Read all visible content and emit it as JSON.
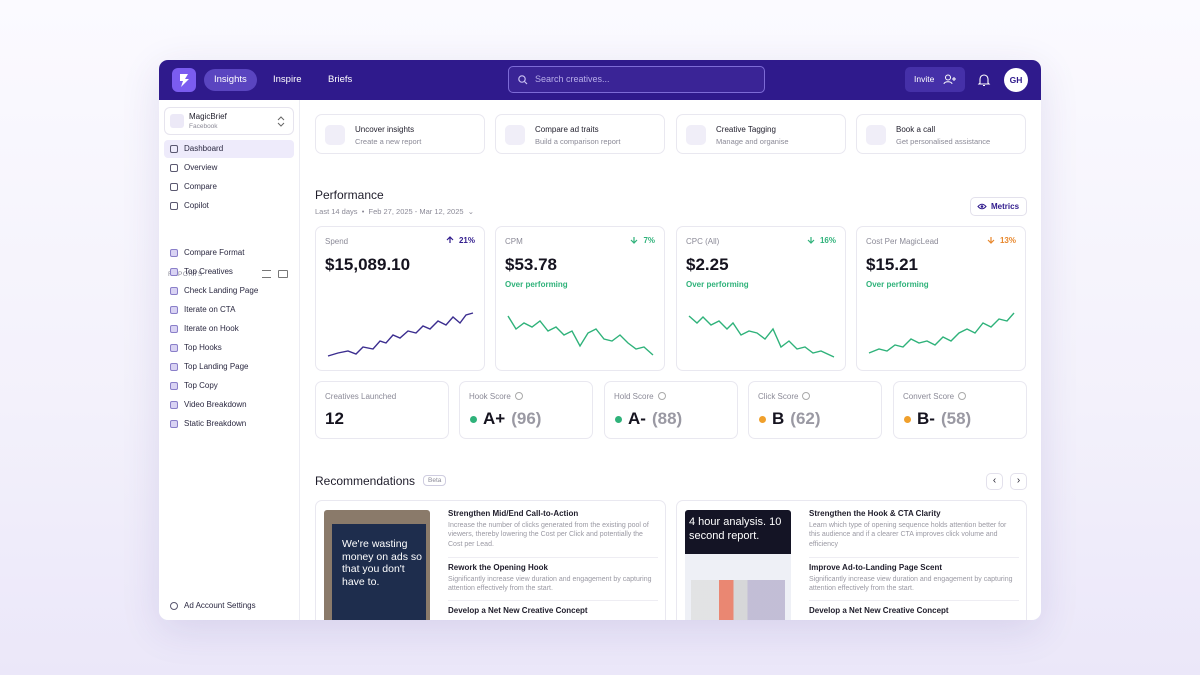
{
  "nav": {
    "items": [
      "Insights",
      "Inspire",
      "Briefs"
    ],
    "search_placeholder": "Search creatives...",
    "invite": "Invite",
    "avatar": "GH"
  },
  "sidebar": {
    "account": {
      "name": "MagicBrief",
      "platform": "Facebook"
    },
    "menu": [
      "Dashboard",
      "Overview",
      "Compare",
      "Copilot"
    ],
    "reports_heading": "REPORTS",
    "reports": [
      "Compare Format",
      "Top Creatives",
      "Check Landing Page",
      "Iterate on CTA",
      "Iterate on Hook",
      "Top Hooks",
      "Top Landing Page",
      "Top Copy",
      "Video Breakdown",
      "Static Breakdown"
    ],
    "footer": "Ad Account Settings"
  },
  "quick_actions": [
    {
      "title": "Uncover insights",
      "subtitle": "Create a new report"
    },
    {
      "title": "Compare ad traits",
      "subtitle": "Build a comparison report"
    },
    {
      "title": "Creative Tagging",
      "subtitle": "Manage and organise"
    },
    {
      "title": "Book a call",
      "subtitle": "Get personalised assistance"
    }
  ],
  "performance": {
    "title": "Performance",
    "period": "Last 14 days",
    "dates": "Feb 27, 2025 - Mar 12, 2025",
    "metrics_button": "Metrics",
    "cards": [
      {
        "label": "Spend",
        "change": "21%",
        "trend": "up",
        "color": "#2f1a8c",
        "value": "$15,089.10"
      },
      {
        "label": "CPM",
        "change": "7%",
        "trend": "down",
        "color": "#2fb27a",
        "value": "$53.78",
        "status": "Over performing"
      },
      {
        "label": "CPC (All)",
        "change": "16%",
        "trend": "down",
        "color": "#2fb27a",
        "value": "$2.25",
        "status": "Over performing"
      },
      {
        "label": "Cost Per MagicLead",
        "change": "13%",
        "trend": "down",
        "color": "#e8872b",
        "value": "$15.21",
        "status": "Over performing"
      }
    ],
    "scores": [
      {
        "label": "Creatives Launched",
        "value": "12"
      },
      {
        "label": "Hook Score",
        "grade": "A+",
        "score": "(96)",
        "color": "#2fb27a"
      },
      {
        "label": "Hold Score",
        "grade": "A-",
        "score": "(88)",
        "color": "#2fb27a"
      },
      {
        "label": "Click Score",
        "grade": "B",
        "score": "(62)",
        "color": "#f0a02c"
      },
      {
        "label": "Convert Score",
        "grade": "B-",
        "score": "(58)",
        "color": "#f0a02c"
      }
    ]
  },
  "recommendations": {
    "title": "Recommendations",
    "badge": "Beta",
    "cards": [
      {
        "image_text": "We're wasting money on ads so that you don't have to.",
        "items": [
          {
            "title": "Strengthen Mid/End Call-to-Action",
            "description": "Increase the number of clicks generated from the existing pool of viewers, thereby lowering the Cost per Click and potentially the Cost per Lead."
          },
          {
            "title": "Rework the Opening Hook",
            "description": "Significantly increase view duration and engagement by capturing attention effectively from the start."
          },
          {
            "title": "Develop a Net New Creative Concept"
          }
        ]
      },
      {
        "image_text": "4 hour analysis. 10 second report.",
        "items": [
          {
            "title": "Strengthen the Hook & CTA Clarity",
            "description": "Learn which type of opening sequence holds attention better for this audience and if a clearer CTA improves click volume and efficiency"
          },
          {
            "title": "Improve Ad-to-Landing Page Scent",
            "description": "Significantly increase view duration and engagement by capturing attention effectively from the start."
          },
          {
            "title": "Develop a Net New Creative Concept"
          }
        ]
      }
    ]
  }
}
